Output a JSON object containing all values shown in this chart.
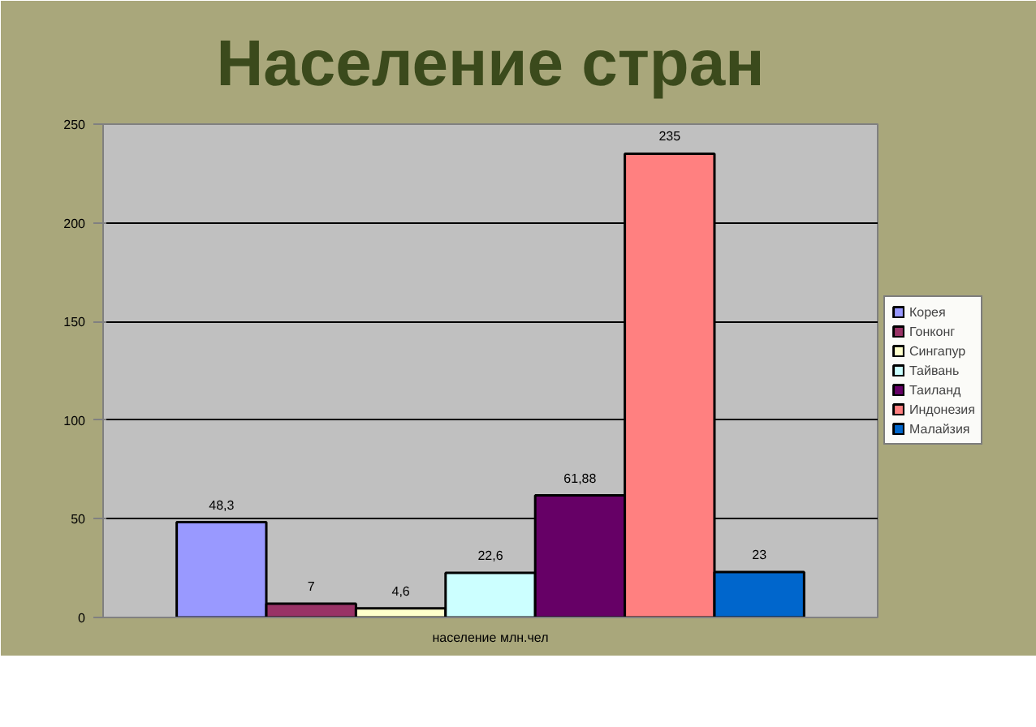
{
  "chart_data": {
    "type": "bar",
    "title": "Население стран",
    "categories": [
      "население млн.чел"
    ],
    "series": [
      {
        "name": "Корея",
        "color": "#9999ff",
        "values": [
          48.3
        ],
        "value_labels": [
          "48,3"
        ]
      },
      {
        "name": "Гонконг",
        "color": "#993366",
        "values": [
          7
        ],
        "value_labels": [
          "7"
        ]
      },
      {
        "name": "Сингапур",
        "color": "#ffffcc",
        "values": [
          4.6
        ],
        "value_labels": [
          "4,6"
        ]
      },
      {
        "name": "Тайвань",
        "color": "#ccffff",
        "values": [
          22.6
        ],
        "value_labels": [
          "22,6"
        ]
      },
      {
        "name": "Таиланд",
        "color": "#660066",
        "values": [
          61.88
        ],
        "value_labels": [
          "61,88"
        ]
      },
      {
        "name": "Индонезия",
        "color": "#ff8080",
        "values": [
          235
        ],
        "value_labels": [
          "235"
        ]
      },
      {
        "name": "Малайзия",
        "color": "#0066cc",
        "values": [
          23
        ],
        "value_labels": [
          "23"
        ]
      }
    ],
    "ylim": [
      0,
      250
    ],
    "yticks": [
      0,
      50,
      100,
      150,
      200,
      250
    ],
    "grid": "y",
    "legend": "right"
  }
}
